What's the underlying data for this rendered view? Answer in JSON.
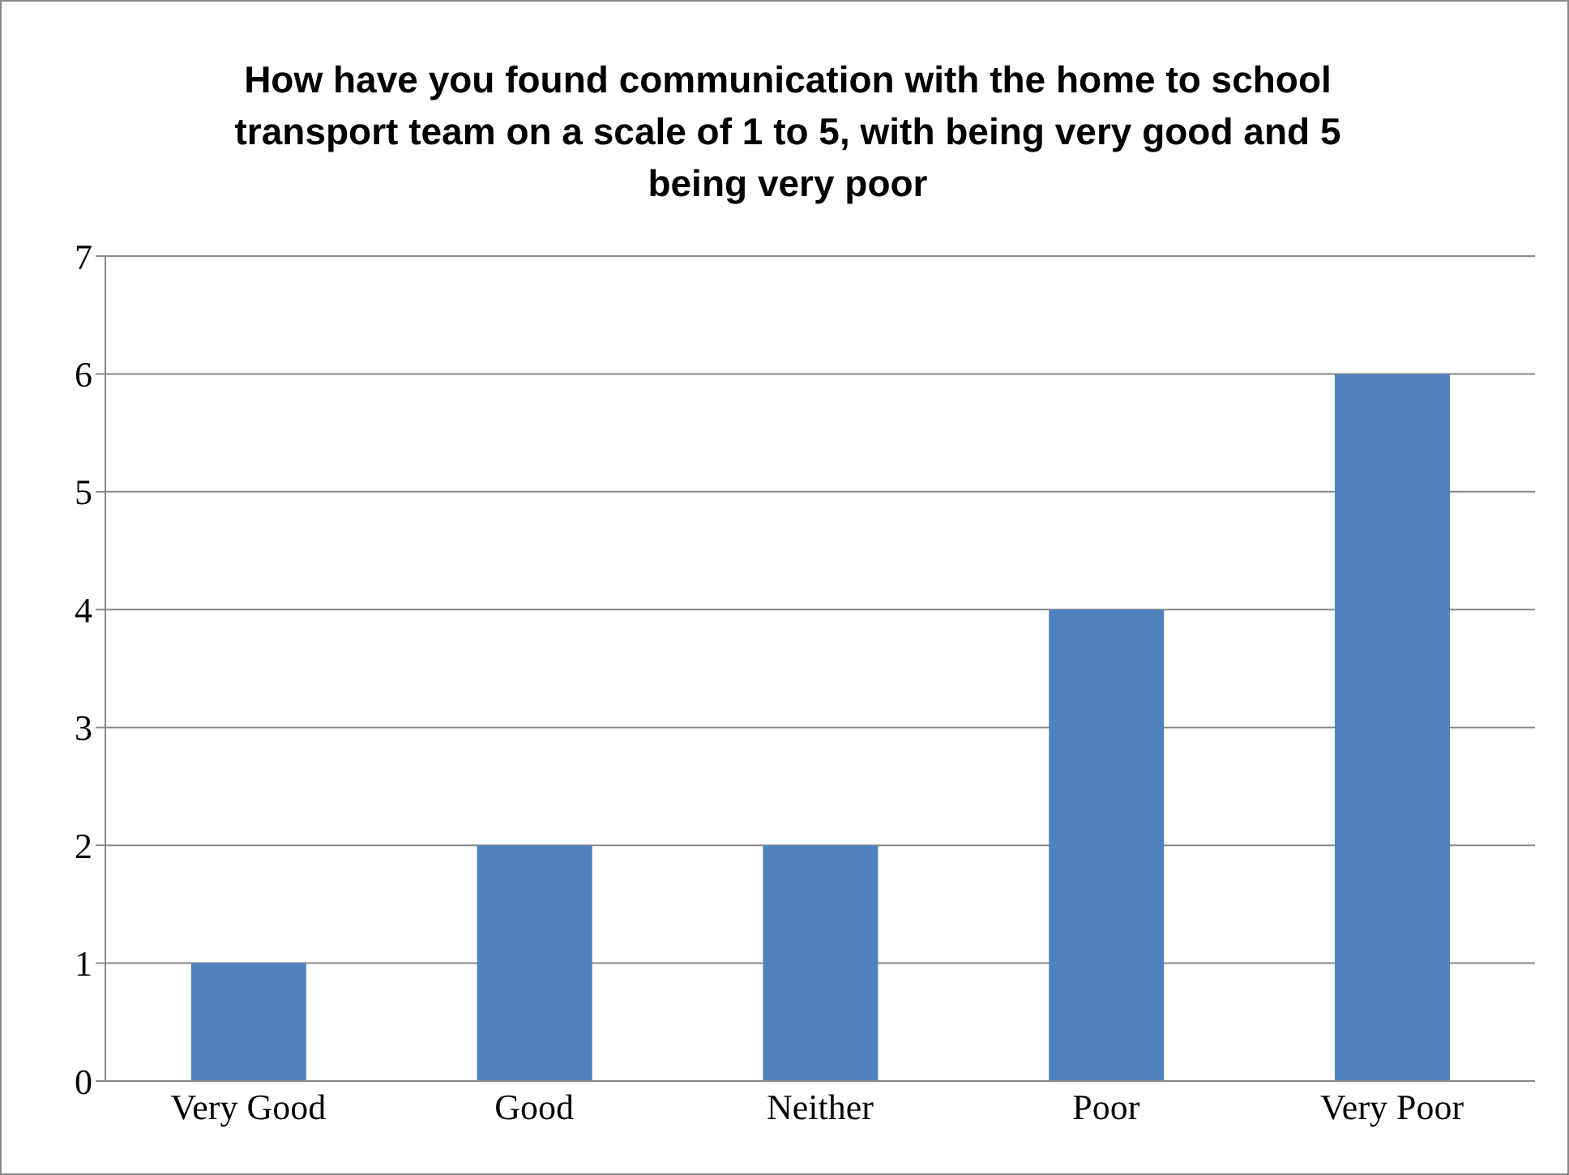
{
  "chart_data": {
    "type": "bar",
    "title": "How have you found communication with the home to school transport team on a scale of 1 to 5, with being very good and 5 being very poor",
    "categories": [
      "Very Good",
      "Good",
      "Neither",
      "Poor",
      "Very Poor"
    ],
    "values": [
      1,
      2,
      2,
      4,
      6
    ],
    "color": "#4f81bd",
    "ylim": [
      0,
      7
    ],
    "yticks": [
      0,
      1,
      2,
      3,
      4,
      5,
      6,
      7
    ],
    "grid": "y",
    "legend": false
  }
}
